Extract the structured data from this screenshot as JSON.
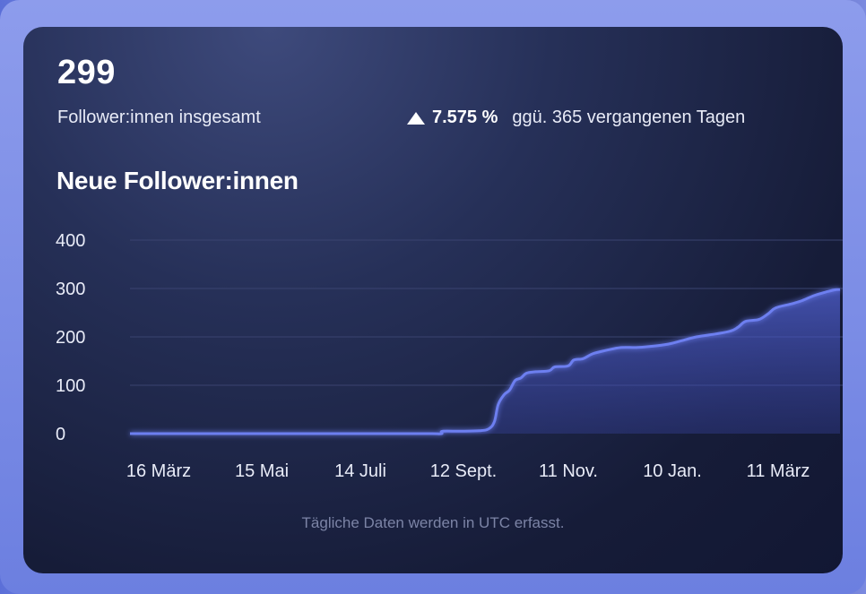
{
  "summary": {
    "total": "299",
    "total_label": "Follower:innen insgesamt",
    "change_percent": "7.575 %",
    "change_comparison": "ggü. 365 vergangenen Tagen",
    "trend_icon": "triangle-up-icon"
  },
  "footnote": "Tägliche Daten werden in UTC erfasst.",
  "colors": {
    "line": "#6d7ff0",
    "area": "#4a58c8",
    "grid": "#3a4370"
  },
  "chart_data": {
    "type": "area",
    "title": "Neue Follower:innen",
    "xlabel": "",
    "ylabel": "",
    "ylim": [
      0,
      400
    ],
    "y_ticks": [
      0,
      100,
      200,
      300,
      400
    ],
    "x_tick_labels": [
      "16 März",
      "15 Mai",
      "14 Juli",
      "12 Sept.",
      "11 Nov.",
      "10 Jan.",
      "11 März"
    ],
    "x_range_days": [
      0,
      365
    ],
    "grid": true,
    "series": [
      {
        "values": [
          [
            0,
            0
          ],
          [
            30,
            0
          ],
          [
            60,
            0
          ],
          [
            90,
            0
          ],
          [
            120,
            0
          ],
          [
            150,
            0
          ],
          [
            160,
            0
          ],
          [
            165,
            0
          ],
          [
            165.5,
            5
          ],
          [
            175,
            5
          ],
          [
            185,
            6
          ],
          [
            190,
            10
          ],
          [
            193,
            25
          ],
          [
            195,
            60
          ],
          [
            198,
            80
          ],
          [
            201,
            90
          ],
          [
            204,
            110
          ],
          [
            207,
            115
          ],
          [
            210,
            125
          ],
          [
            215,
            128
          ],
          [
            222,
            130
          ],
          [
            225,
            138
          ],
          [
            232,
            140
          ],
          [
            235,
            152
          ],
          [
            240,
            155
          ],
          [
            245,
            165
          ],
          [
            252,
            172
          ],
          [
            260,
            178
          ],
          [
            268,
            178
          ],
          [
            275,
            180
          ],
          [
            285,
            185
          ],
          [
            292,
            192
          ],
          [
            300,
            200
          ],
          [
            310,
            206
          ],
          [
            318,
            212
          ],
          [
            322,
            220
          ],
          [
            326,
            232
          ],
          [
            333,
            236
          ],
          [
            338,
            248
          ],
          [
            342,
            260
          ],
          [
            350,
            268
          ],
          [
            356,
            275
          ],
          [
            362,
            285
          ],
          [
            368,
            292
          ],
          [
            373,
            297
          ],
          [
            376,
            298
          ]
        ]
      }
    ]
  }
}
